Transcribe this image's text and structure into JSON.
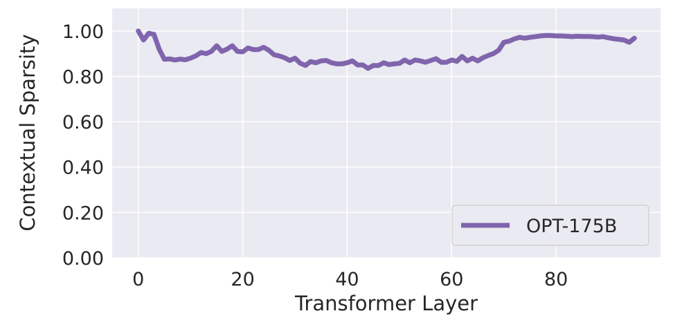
{
  "chart_data": {
    "type": "line",
    "xlabel": "Transformer Layer",
    "ylabel": "Contextual Sparsity",
    "xlim": [
      -5,
      100
    ],
    "ylim": [
      0,
      1.1
    ],
    "x_ticks": [
      "0",
      "20",
      "40",
      "60",
      "80"
    ],
    "y_ticks": [
      "0.00",
      "0.20",
      "0.40",
      "0.60",
      "0.80",
      "1.00"
    ],
    "grid": true,
    "legend_position": "bottom-right",
    "series": [
      {
        "name": "OPT-175B",
        "color": "#8064ac",
        "x": [
          0,
          1,
          2,
          3,
          4,
          5,
          6,
          7,
          8,
          9,
          10,
          11,
          12,
          13,
          14,
          15,
          16,
          17,
          18,
          19,
          20,
          21,
          22,
          23,
          24,
          25,
          26,
          27,
          28,
          29,
          30,
          31,
          32,
          33,
          34,
          35,
          36,
          37,
          38,
          39,
          40,
          41,
          42,
          43,
          44,
          45,
          46,
          47,
          48,
          49,
          50,
          51,
          52,
          53,
          54,
          55,
          56,
          57,
          58,
          59,
          60,
          61,
          62,
          63,
          64,
          65,
          66,
          67,
          68,
          69,
          70,
          71,
          72,
          73,
          74,
          75,
          76,
          77,
          78,
          79,
          80,
          81,
          82,
          83,
          84,
          85,
          86,
          87,
          88,
          89,
          90,
          91,
          92,
          93,
          94,
          95
        ],
        "y": [
          1.0,
          0.96,
          0.99,
          0.985,
          0.92,
          0.875,
          0.877,
          0.872,
          0.876,
          0.873,
          0.88,
          0.89,
          0.905,
          0.9,
          0.91,
          0.935,
          0.91,
          0.92,
          0.935,
          0.91,
          0.908,
          0.925,
          0.918,
          0.918,
          0.928,
          0.915,
          0.895,
          0.89,
          0.882,
          0.87,
          0.88,
          0.858,
          0.848,
          0.865,
          0.86,
          0.868,
          0.87,
          0.86,
          0.855,
          0.855,
          0.86,
          0.868,
          0.85,
          0.85,
          0.835,
          0.848,
          0.848,
          0.86,
          0.852,
          0.855,
          0.857,
          0.872,
          0.86,
          0.872,
          0.868,
          0.862,
          0.87,
          0.878,
          0.862,
          0.862,
          0.872,
          0.866,
          0.888,
          0.868,
          0.88,
          0.868,
          0.882,
          0.892,
          0.9,
          0.915,
          0.95,
          0.955,
          0.965,
          0.972,
          0.968,
          0.972,
          0.975,
          0.978,
          0.98,
          0.98,
          0.978,
          0.978,
          0.977,
          0.975,
          0.977,
          0.976,
          0.976,
          0.975,
          0.973,
          0.975,
          0.97,
          0.966,
          0.963,
          0.96,
          0.95,
          0.968
        ]
      }
    ]
  }
}
